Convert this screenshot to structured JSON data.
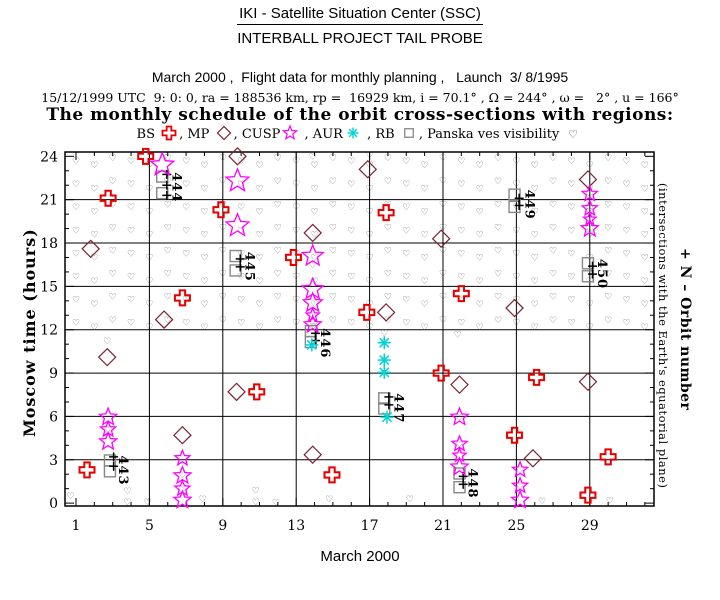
{
  "header": {
    "line1": "IKI - Satellite Situation Center (SSC)",
    "line2": "INTERBALL PROJECT TAIL PROBE",
    "line3": "March 2000 ,  Flight data for monthly planning ,   Launch  3/ 8/1995",
    "line4": "15/12/1999 UTC  9: 0: 0, ra = 188536 km, rp =  16929 km, i = 70.1° , Ω = 244° , ω =   2° , u = 166°",
    "line5": "The monthly schedule of the orbit cross-sections with regions:"
  },
  "legend": {
    "parts": [
      {
        "text": "BS "
      },
      {
        "symbol": "cross"
      },
      {
        "text": ", MP "
      },
      {
        "symbol": "diamond"
      },
      {
        "text": ", CUSP"
      },
      {
        "symbol": "star"
      },
      {
        "text": " , AUR"
      },
      {
        "symbol": "asterisk"
      },
      {
        "text": " , RB "
      },
      {
        "symbol": "square"
      },
      {
        "text": ", Panska ves visibility "
      },
      {
        "symbol": "heart"
      }
    ]
  },
  "chart_data": {
    "type": "scatter",
    "x_axis": {
      "label": "March 2000",
      "min": 0.4,
      "max": 32.5,
      "major_ticks": [
        1,
        5,
        9,
        13,
        17,
        21,
        25,
        29
      ],
      "minor_tick_step": 1,
      "gridlines": [
        5,
        9,
        13,
        17,
        21,
        25,
        29
      ]
    },
    "y_axis": {
      "label": "Moscow time (hours)",
      "min": -0.2,
      "max": 24.3,
      "major_ticks": [
        0,
        3,
        6,
        9,
        12,
        15,
        18,
        21,
        24
      ],
      "minor_tick_step": 1,
      "gridlines": [
        3,
        6,
        9,
        12,
        15,
        18,
        21
      ]
    },
    "right_labels": {
      "outer": "+ N – Orbit number",
      "inner": "(intersections with the Earth's equatorial plane)"
    },
    "series": {
      "bow_shock": {
        "name": "BS",
        "symbol": "cross",
        "color": "#e60000",
        "points": [
          {
            "day": 4.8,
            "hour": 24.0
          },
          {
            "day": 2.75,
            "hour": 21.1
          },
          {
            "day": 8.9,
            "hour": 20.3
          },
          {
            "day": 17.9,
            "hour": 20.1
          },
          {
            "day": 12.85,
            "hour": 17.0
          },
          {
            "day": 22.0,
            "hour": 14.5
          },
          {
            "day": 6.8,
            "hour": 14.2
          },
          {
            "day": 16.85,
            "hour": 13.2
          },
          {
            "day": 20.9,
            "hour": 9.0
          },
          {
            "day": 26.1,
            "hour": 8.7
          },
          {
            "day": 10.85,
            "hour": 7.7
          },
          {
            "day": 24.9,
            "hour": 4.7
          },
          {
            "day": 30.0,
            "hour": 3.2
          },
          {
            "day": 14.95,
            "hour": 1.95
          },
          {
            "day": 1.6,
            "hour": 2.3
          },
          {
            "day": 28.9,
            "hour": 0.55
          }
        ]
      },
      "magnetopause": {
        "name": "MP",
        "symbol": "diamond",
        "color": "#7b2230",
        "points": [
          {
            "day": 9.8,
            "hour": 24.0
          },
          {
            "day": 16.9,
            "hour": 23.1
          },
          {
            "day": 28.9,
            "hour": 22.4
          },
          {
            "day": 13.9,
            "hour": 18.7
          },
          {
            "day": 20.9,
            "hour": 18.3
          },
          {
            "day": 1.8,
            "hour": 17.6
          },
          {
            "day": 24.9,
            "hour": 13.5
          },
          {
            "day": 17.9,
            "hour": 13.2
          },
          {
            "day": 5.8,
            "hour": 12.7
          },
          {
            "day": 2.7,
            "hour": 10.1
          },
          {
            "day": 9.75,
            "hour": 7.7
          },
          {
            "day": 28.9,
            "hour": 8.4
          },
          {
            "day": 21.9,
            "hour": 8.2
          },
          {
            "day": 6.8,
            "hour": 4.7
          },
          {
            "day": 13.9,
            "hour": 3.35
          },
          {
            "day": 25.9,
            "hour": 3.1
          }
        ]
      },
      "cusp": {
        "name": "CUSP",
        "symbol": "star",
        "color": "#ff00ff",
        "points": [
          {
            "day": 5.7,
            "hour": 23.4,
            "size": 24
          },
          {
            "day": 9.8,
            "hour": 22.3,
            "size": 24
          },
          {
            "day": 9.8,
            "hour": 19.2,
            "size": 24
          },
          {
            "day": 13.9,
            "hour": 17.1,
            "size": 22
          },
          {
            "day": 13.9,
            "hour": 14.8,
            "size": 22
          },
          {
            "day": 13.9,
            "hour": 13.85,
            "size": 20
          },
          {
            "day": 13.9,
            "hour": 13.0,
            "size": 14
          },
          {
            "day": 13.9,
            "hour": 12.35,
            "size": 18
          },
          {
            "day": 2.75,
            "hour": 5.95,
            "size": 18
          },
          {
            "day": 2.75,
            "hour": 5.1,
            "size": 16
          },
          {
            "day": 2.75,
            "hour": 4.25,
            "size": 18
          },
          {
            "day": 6.8,
            "hour": 3.1,
            "size": 16
          },
          {
            "day": 6.8,
            "hour": 1.9,
            "size": 18
          },
          {
            "day": 6.8,
            "hour": 1.0,
            "size": 16
          },
          {
            "day": 6.8,
            "hour": 0.2,
            "size": 18
          },
          {
            "day": 21.9,
            "hour": 5.95,
            "size": 18
          },
          {
            "day": 21.9,
            "hour": 4.1,
            "size": 16
          },
          {
            "day": 21.9,
            "hour": 3.3,
            "size": 14
          },
          {
            "day": 21.9,
            "hour": 2.5,
            "size": 18
          },
          {
            "day": 25.2,
            "hour": 2.3,
            "size": 16
          },
          {
            "day": 25.2,
            "hour": 1.2,
            "size": 16
          },
          {
            "day": 25.2,
            "hour": 0.2,
            "size": 18
          },
          {
            "day": 29.0,
            "hour": 21.4,
            "size": 16
          },
          {
            "day": 29.0,
            "hour": 20.4,
            "size": 16
          },
          {
            "day": 29.0,
            "hour": 19.65,
            "size": 13
          },
          {
            "day": 29.0,
            "hour": 19.0,
            "size": 18
          }
        ]
      },
      "aurora": {
        "name": "AUR",
        "symbol": "asterisk",
        "color": "#00d5d5",
        "points": [
          {
            "day": 13.85,
            "hour": 10.95
          },
          {
            "day": 17.8,
            "hour": 11.1
          },
          {
            "day": 17.8,
            "hour": 9.9
          },
          {
            "day": 17.8,
            "hour": 9.05
          },
          {
            "day": 17.95,
            "hour": 5.95
          }
        ]
      },
      "radiation_belt": {
        "name": "RB",
        "symbol": "square",
        "color": "#878787",
        "points": [
          {
            "day": 2.85,
            "hour": 2.95
          },
          {
            "day": 2.85,
            "hour": 2.2
          },
          {
            "day": 5.7,
            "hour": 22.6
          },
          {
            "day": 5.7,
            "hour": 21.45
          },
          {
            "day": 9.7,
            "hour": 17.1
          },
          {
            "day": 9.7,
            "hour": 16.1
          },
          {
            "day": 13.8,
            "hour": 11.9
          },
          {
            "day": 13.8,
            "hour": 11.15
          },
          {
            "day": 17.8,
            "hour": 7.25
          },
          {
            "day": 17.8,
            "hour": 6.55
          },
          {
            "day": 21.9,
            "hour": 2.05
          },
          {
            "day": 21.9,
            "hour": 1.1
          },
          {
            "day": 24.9,
            "hour": 21.35
          },
          {
            "day": 24.9,
            "hour": 20.5
          },
          {
            "day": 28.9,
            "hour": 16.6
          },
          {
            "day": 28.9,
            "hour": 15.7
          }
        ]
      },
      "visibility": {
        "name": "Panska ves visibility",
        "symbol": "heart",
        "color": "#606060",
        "patterns": {
          "A": [
            23.7,
            22.1,
            20.5,
            18.9,
            17.3,
            15.7,
            14.1,
            12.5
          ],
          "B": [
            23.4,
            21.8,
            20.2,
            18.6,
            17.0,
            15.4,
            13.8,
            12.2
          ],
          "C": [
            23.9,
            22.3,
            20.7,
            19.1,
            17.5,
            15.9,
            14.3,
            12.7
          ]
        },
        "columns": [
          {
            "day": 1,
            "pattern": "A"
          },
          {
            "day": 2,
            "pattern": "B"
          },
          {
            "day": 3,
            "pattern": "C"
          },
          {
            "day": 4,
            "pattern": "A"
          },
          {
            "day": 5,
            "pattern": "B"
          },
          {
            "day": 6,
            "pattern": "C"
          },
          {
            "day": 7,
            "pattern": "A"
          },
          {
            "day": 8,
            "pattern": "B"
          },
          {
            "day": 9,
            "pattern": "C"
          },
          {
            "day": 10,
            "pattern": "A"
          },
          {
            "day": 11,
            "pattern": "B"
          },
          {
            "day": 12,
            "pattern": "C"
          },
          {
            "day": 13,
            "pattern": "A"
          },
          {
            "day": 14,
            "pattern": "B"
          },
          {
            "day": 15,
            "pattern": "C"
          },
          {
            "day": 16,
            "pattern": "A"
          },
          {
            "day": 17,
            "pattern": "B"
          },
          {
            "day": 18,
            "pattern": "C"
          },
          {
            "day": 19,
            "pattern": "A"
          },
          {
            "day": 20,
            "pattern": "B"
          },
          {
            "day": 21,
            "pattern": "C"
          },
          {
            "day": 22,
            "pattern": "A"
          },
          {
            "day": 23,
            "pattern": "B"
          },
          {
            "day": 24,
            "pattern": "C"
          },
          {
            "day": 25,
            "pattern": "A"
          },
          {
            "day": 26,
            "pattern": "B"
          },
          {
            "day": 27,
            "pattern": "C"
          },
          {
            "day": 28,
            "pattern": "A"
          },
          {
            "day": 29,
            "pattern": "B"
          },
          {
            "day": 30,
            "pattern": "C"
          },
          {
            "day": 31,
            "pattern": "A"
          },
          {
            "day": 32,
            "pattern": "B"
          }
        ],
        "extra": [
          {
            "day": 2.7,
            "hour": 11.25
          },
          {
            "day": 13.9,
            "hour": 12.2
          },
          {
            "day": 17.8,
            "hour": 11.8
          },
          {
            "day": 21.8,
            "hour": 11.7
          },
          {
            "day": 2.75,
            "hour": 5.1
          },
          {
            "day": 6.8,
            "hour": 1.95
          },
          {
            "day": 6.8,
            "hour": 0.95
          },
          {
            "day": 17.8,
            "hour": 11.1
          },
          {
            "day": 17.8,
            "hour": 9.9
          },
          {
            "day": 17.8,
            "hour": 9.0
          },
          {
            "day": 21.9,
            "hour": 5.95
          },
          {
            "day": 21.9,
            "hour": 4.1
          },
          {
            "day": 25.2,
            "hour": 2.3
          },
          {
            "day": 25.2,
            "hour": 1.2
          },
          {
            "day": 29.0,
            "hour": 21.4
          },
          {
            "day": 29.0,
            "hour": 20.4
          },
          {
            "day": 29.0,
            "hour": 19.6
          },
          {
            "day": 29.0,
            "hour": 19.0
          },
          {
            "day": 0.7,
            "hour": 0.5
          },
          {
            "day": 3.8,
            "hour": 0.85
          },
          {
            "day": 3.8,
            "hour": 0.1
          },
          {
            "day": 4.9,
            "hour": 0.1
          },
          {
            "day": 7.9,
            "hour": 0.3
          },
          {
            "day": 10.8,
            "hour": 0.9
          },
          {
            "day": 10.8,
            "hour": 0.1
          },
          {
            "day": 11.9,
            "hour": 0.05
          },
          {
            "day": 14.8,
            "hour": 0.3
          },
          {
            "day": 19.2,
            "hour": 0.3
          },
          {
            "day": 26.4,
            "hour": 0.15
          },
          {
            "day": 30.1,
            "hour": 0.2
          },
          {
            "day": 13.9,
            "hour": 16.5
          },
          {
            "day": 5.8,
            "hour": 23.95
          },
          {
            "day": 13.9,
            "hour": 24.0
          },
          {
            "day": 17.0,
            "hour": 24.1
          }
        ]
      },
      "orbit_numbers": [
        {
          "number": "443",
          "label_day": 3.35,
          "label_hour": 3.3,
          "plus": [
            {
              "day": 3.05,
              "hour": 3.2
            },
            {
              "day": 3.05,
              "hour": 2.55
            }
          ]
        },
        {
          "number": "444",
          "label_day": 6.25,
          "label_hour": 22.9,
          "plus": [
            {
              "day": 5.95,
              "hour": 22.75
            },
            {
              "day": 5.95,
              "hour": 22.0
            },
            {
              "day": 5.95,
              "hour": 21.3
            }
          ]
        },
        {
          "number": "445",
          "label_day": 10.25,
          "label_hour": 17.4,
          "plus": [
            {
              "day": 9.95,
              "hour": 16.9
            },
            {
              "day": 9.95,
              "hour": 16.35
            }
          ]
        },
        {
          "number": "446",
          "label_day": 14.35,
          "label_hour": 12.1,
          "plus": [
            {
              "day": 14.05,
              "hour": 11.75
            },
            {
              "day": 14.05,
              "hour": 11.25
            }
          ]
        },
        {
          "number": "447",
          "label_day": 18.35,
          "label_hour": 7.6,
          "plus": [
            {
              "day": 18.05,
              "hour": 7.35
            },
            {
              "day": 18.05,
              "hour": 6.8
            }
          ]
        },
        {
          "number": "448",
          "label_day": 22.4,
          "label_hour": 2.4,
          "plus": [
            {
              "day": 22.1,
              "hour": 1.85
            },
            {
              "day": 22.1,
              "hour": 1.3
            }
          ]
        },
        {
          "number": "449",
          "label_day": 25.5,
          "label_hour": 21.7,
          "plus": [
            {
              "day": 25.15,
              "hour": 21.1
            },
            {
              "day": 25.15,
              "hour": 20.6
            }
          ]
        },
        {
          "number": "450",
          "label_day": 29.45,
          "label_hour": 16.9,
          "plus": [
            {
              "day": 29.15,
              "hour": 16.4
            },
            {
              "day": 29.15,
              "hour": 15.85
            }
          ]
        }
      ]
    }
  }
}
